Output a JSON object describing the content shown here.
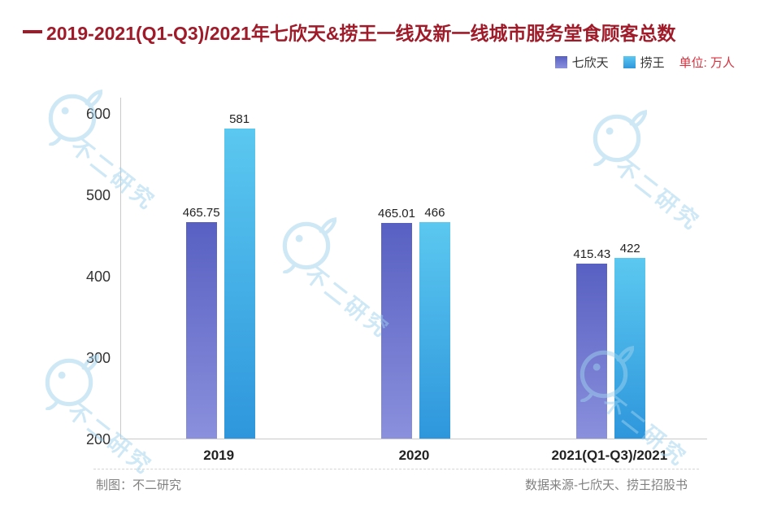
{
  "title": {
    "dash": "—",
    "text": "2019-2021(Q1-Q3)/2021年七欣天&捞王一线及新一线城市服务堂食顾客总数",
    "color": "#a01b29"
  },
  "legend": {
    "unit_label": "单位: 万人",
    "unit_color": "#d9303e"
  },
  "chart_data": {
    "type": "bar",
    "title": "2019-2021(Q1-Q3)/2021年七欣天&捞王一线及新一线城市服务堂食顾客总数",
    "categories": [
      "2019",
      "2020",
      "2021(Q1-Q3)/2021"
    ],
    "series": [
      {
        "name": "七欣天",
        "values": [
          465.75,
          465.01,
          415.43
        ],
        "color_top": "#5860c2",
        "color_bottom": "#8a90dc"
      },
      {
        "name": "捞王",
        "values": [
          581,
          466,
          422
        ],
        "color_top": "#5bc8f0",
        "color_bottom": "#2e96dc"
      }
    ],
    "unit": "万人",
    "xlabel": "",
    "ylabel": "",
    "ylim": [
      200,
      600
    ],
    "yticks": [
      200,
      300,
      400,
      500,
      600
    ],
    "grid": false,
    "legend_position": "top-right"
  },
  "footer": {
    "left": "制图：不二研究",
    "right": "数据来源-七欣天、捞王招股书"
  },
  "watermark": {
    "text": "不二研究",
    "color": "#9ed2ee"
  }
}
